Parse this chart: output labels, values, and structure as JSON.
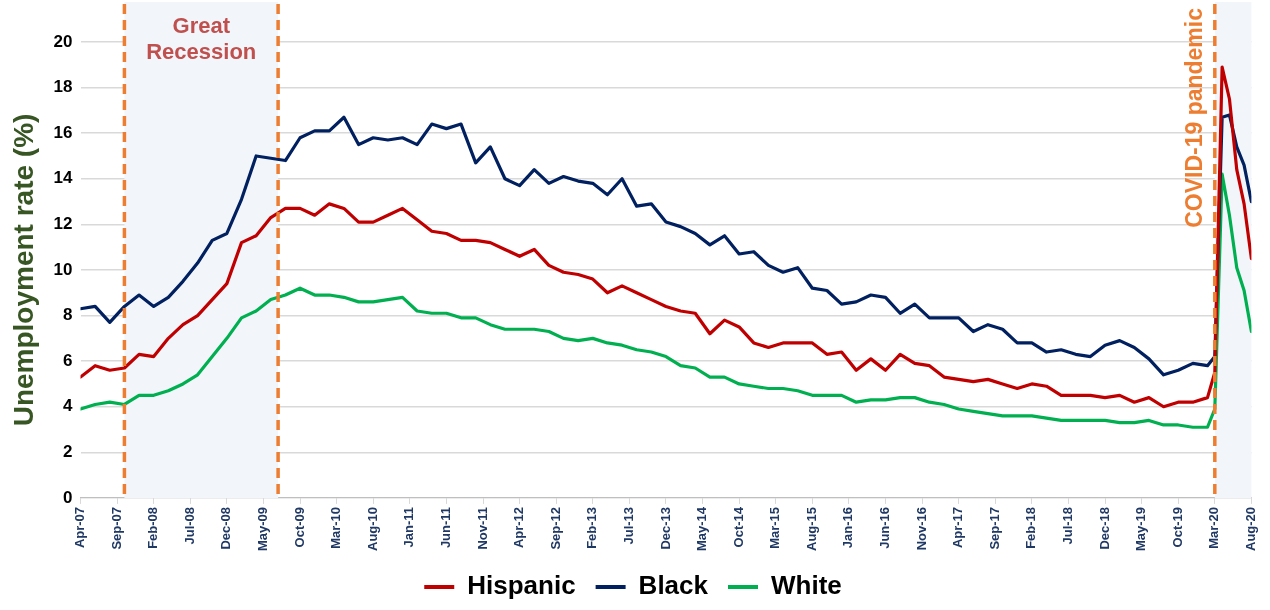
{
  "chart_data": {
    "type": "line",
    "ylabel": "Unemployment rate (%)",
    "x": [
      "2007-04",
      "2007-06",
      "2007-08",
      "2007-10",
      "2007-12",
      "2008-02",
      "2008-04",
      "2008-06",
      "2008-08",
      "2008-10",
      "2008-12",
      "2009-02",
      "2009-04",
      "2009-06",
      "2009-08",
      "2009-10",
      "2009-12",
      "2010-02",
      "2010-04",
      "2010-06",
      "2010-08",
      "2010-10",
      "2010-12",
      "2011-02",
      "2011-04",
      "2011-06",
      "2011-08",
      "2011-10",
      "2011-12",
      "2012-02",
      "2012-04",
      "2012-06",
      "2012-08",
      "2012-10",
      "2012-12",
      "2013-02",
      "2013-04",
      "2013-06",
      "2013-08",
      "2013-10",
      "2013-12",
      "2014-02",
      "2014-04",
      "2014-06",
      "2014-08",
      "2014-10",
      "2014-12",
      "2015-02",
      "2015-04",
      "2015-06",
      "2015-08",
      "2015-10",
      "2015-12",
      "2016-02",
      "2016-04",
      "2016-06",
      "2016-08",
      "2016-10",
      "2016-12",
      "2017-02",
      "2017-04",
      "2017-06",
      "2017-08",
      "2017-10",
      "2017-12",
      "2018-02",
      "2018-04",
      "2018-06",
      "2018-08",
      "2018-10",
      "2018-12",
      "2019-02",
      "2019-04",
      "2019-06",
      "2019-08",
      "2019-10",
      "2019-12",
      "2020-02",
      "2020-03",
      "2020-04",
      "2020-05",
      "2020-06",
      "2020-07",
      "2020-08"
    ],
    "series": [
      {
        "name": "Hispanic",
        "color": "#c00000",
        "values": [
          5.3,
          5.8,
          5.6,
          5.7,
          6.3,
          6.2,
          7.0,
          7.6,
          8.0,
          8.7,
          9.4,
          11.2,
          11.5,
          12.3,
          12.7,
          12.7,
          12.4,
          12.9,
          12.7,
          12.1,
          12.1,
          12.4,
          12.7,
          12.2,
          11.7,
          11.6,
          11.3,
          11.3,
          11.2,
          10.9,
          10.6,
          10.9,
          10.2,
          9.9,
          9.8,
          9.6,
          9.0,
          9.3,
          9.0,
          8.7,
          8.4,
          8.2,
          8.1,
          7.2,
          7.8,
          7.5,
          6.8,
          6.6,
          6.8,
          6.8,
          6.8,
          6.3,
          6.4,
          5.6,
          6.1,
          5.6,
          6.3,
          5.9,
          5.8,
          5.3,
          5.2,
          5.1,
          5.2,
          5.0,
          4.8,
          5.0,
          4.9,
          4.5,
          4.5,
          4.5,
          4.4,
          4.5,
          4.2,
          4.4,
          4.0,
          4.2,
          4.2,
          4.4,
          5.5,
          18.9,
          17.5,
          14.4,
          12.9,
          10.5
        ]
      },
      {
        "name": "Black",
        "color": "#002060",
        "values": [
          8.3,
          8.4,
          7.7,
          8.4,
          8.9,
          8.4,
          8.8,
          9.5,
          10.3,
          11.3,
          11.6,
          13.1,
          15.0,
          14.9,
          14.8,
          15.8,
          16.1,
          16.1,
          16.7,
          15.5,
          15.8,
          15.7,
          15.8,
          15.5,
          16.4,
          16.2,
          16.4,
          14.7,
          15.4,
          14.0,
          13.7,
          14.4,
          13.8,
          14.1,
          13.9,
          13.8,
          13.3,
          14.0,
          12.8,
          12.9,
          12.1,
          11.9,
          11.6,
          11.1,
          11.5,
          10.7,
          10.8,
          10.2,
          9.9,
          10.1,
          9.2,
          9.1,
          8.5,
          8.6,
          8.9,
          8.8,
          8.1,
          8.5,
          7.9,
          7.9,
          7.9,
          7.3,
          7.6,
          7.4,
          6.8,
          6.8,
          6.4,
          6.5,
          6.3,
          6.2,
          6.7,
          6.9,
          6.6,
          6.1,
          5.4,
          5.6,
          5.9,
          5.8,
          6.2,
          16.7,
          16.8,
          15.4,
          14.6,
          13.0
        ]
      },
      {
        "name": "White",
        "color": "#00b050",
        "values": [
          3.9,
          4.1,
          4.2,
          4.1,
          4.5,
          4.5,
          4.7,
          5.0,
          5.4,
          6.2,
          7.0,
          7.9,
          8.2,
          8.7,
          8.9,
          9.2,
          8.9,
          8.9,
          8.8,
          8.6,
          8.6,
          8.7,
          8.8,
          8.2,
          8.1,
          8.1,
          7.9,
          7.9,
          7.6,
          7.4,
          7.4,
          7.4,
          7.3,
          7.0,
          6.9,
          7.0,
          6.8,
          6.7,
          6.5,
          6.4,
          6.2,
          5.8,
          5.7,
          5.3,
          5.3,
          5.0,
          4.9,
          4.8,
          4.8,
          4.7,
          4.5,
          4.5,
          4.5,
          4.2,
          4.3,
          4.3,
          4.4,
          4.4,
          4.2,
          4.1,
          3.9,
          3.8,
          3.7,
          3.6,
          3.6,
          3.6,
          3.5,
          3.4,
          3.4,
          3.4,
          3.4,
          3.3,
          3.3,
          3.4,
          3.2,
          3.2,
          3.1,
          3.1,
          3.9,
          14.2,
          12.4,
          10.1,
          9.1,
          7.3
        ]
      }
    ],
    "xlim": [
      "2007-04",
      "2020-08"
    ],
    "xticks": [
      {
        "value": "2007-04",
        "label": "Apr-07"
      },
      {
        "value": "2007-09",
        "label": "Sep-07"
      },
      {
        "value": "2008-02",
        "label": "Feb-08"
      },
      {
        "value": "2008-07",
        "label": "Jul-08"
      },
      {
        "value": "2008-12",
        "label": "Dec-08"
      },
      {
        "value": "2009-05",
        "label": "May-09"
      },
      {
        "value": "2009-10",
        "label": "Oct-09"
      },
      {
        "value": "2010-03",
        "label": "Mar-10"
      },
      {
        "value": "2010-08",
        "label": "Aug-10"
      },
      {
        "value": "2011-01",
        "label": "Jan-11"
      },
      {
        "value": "2011-06",
        "label": "Jun-11"
      },
      {
        "value": "2011-11",
        "label": "Nov-11"
      },
      {
        "value": "2012-04",
        "label": "Apr-12"
      },
      {
        "value": "2012-09",
        "label": "Sep-12"
      },
      {
        "value": "2013-02",
        "label": "Feb-13"
      },
      {
        "value": "2013-07",
        "label": "Jul-13"
      },
      {
        "value": "2013-12",
        "label": "Dec-13"
      },
      {
        "value": "2014-05",
        "label": "May-14"
      },
      {
        "value": "2014-10",
        "label": "Oct-14"
      },
      {
        "value": "2015-03",
        "label": "Mar-15"
      },
      {
        "value": "2015-08",
        "label": "Aug-15"
      },
      {
        "value": "2016-01",
        "label": "Jan-16"
      },
      {
        "value": "2016-06",
        "label": "Jun-16"
      },
      {
        "value": "2016-11",
        "label": "Nov-16"
      },
      {
        "value": "2017-04",
        "label": "Apr-17"
      },
      {
        "value": "2017-09",
        "label": "Sep-17"
      },
      {
        "value": "2018-02",
        "label": "Feb-18"
      },
      {
        "value": "2018-07",
        "label": "Jul-18"
      },
      {
        "value": "2018-12",
        "label": "Dec-18"
      },
      {
        "value": "2019-05",
        "label": "May-19"
      },
      {
        "value": "2019-10",
        "label": "Oct-19"
      },
      {
        "value": "2020-03",
        "label": "Mar-20"
      },
      {
        "value": "2020-08",
        "label": "Aug-20"
      }
    ],
    "ylim": [
      0,
      20
    ],
    "yticks": [
      0,
      2,
      4,
      6,
      8,
      10,
      12,
      14,
      16,
      18,
      20
    ],
    "bands": [
      {
        "axis": "x",
        "from": "2007-10",
        "to": "2009-07",
        "label": "Great Recession",
        "color": "#f2f6fb"
      },
      {
        "axis": "x",
        "from": "2020-03",
        "to": "2020-08",
        "color": "#f2f6fb"
      }
    ],
    "ref_lines": [
      {
        "axis": "x",
        "value": "2007-10",
        "color": "#ed7d31",
        "line_style": "dashed"
      },
      {
        "axis": "x",
        "value": "2009-07",
        "color": "#ed7d31",
        "line_style": "dashed"
      },
      {
        "axis": "x",
        "value": "2020-03",
        "label": "COVID-19 pandemic",
        "color": "#ed7d31",
        "line_style": "dashed"
      }
    ],
    "grid": "y",
    "legend": "bottom",
    "marker": "none",
    "line_style": "solid"
  }
}
